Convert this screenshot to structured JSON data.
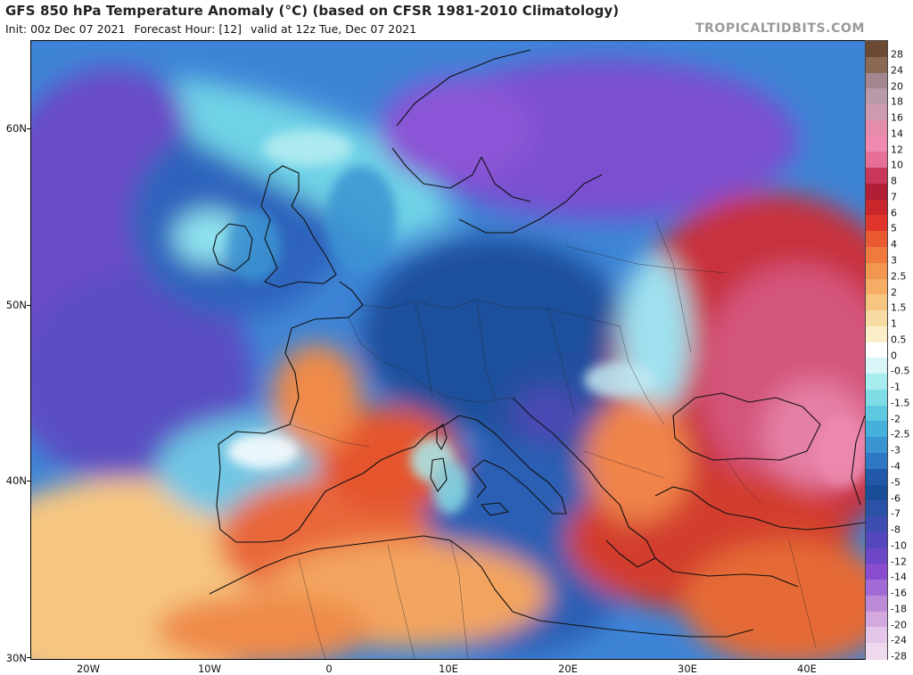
{
  "header": {
    "title": "GFS 850 hPa Temperature Anomaly (°C) (based on CFSR 1981-2010 Climatology)",
    "init": "Init: 00z Dec 07 2021",
    "forecast_hour": "Forecast Hour: [12]",
    "valid": "valid at 12z Tue, Dec 07 2021",
    "brand": "TROPICALTIDBITS.COM"
  },
  "axes": {
    "lat_labels": [
      "60N",
      "50N",
      "40N",
      "30N"
    ],
    "lon_labels": [
      "20W",
      "10W",
      "0",
      "10E",
      "20E",
      "30E",
      "40E"
    ]
  },
  "colorbar": {
    "labels": [
      "28",
      "24",
      "20",
      "18",
      "16",
      "14",
      "12",
      "10",
      "8",
      "7",
      "6",
      "5",
      "4",
      "3",
      "2.5",
      "2",
      "1.5",
      "1",
      "0.5",
      "0",
      "-0.5",
      "-1",
      "-1.5",
      "-2",
      "-2.5",
      "-3",
      "-4",
      "-5",
      "-6",
      "-7",
      "-8",
      "-10",
      "-12",
      "-14",
      "-16",
      "-18",
      "-20",
      "-24",
      "-28"
    ],
    "colors": [
      "#6b4a33",
      "#8a6a55",
      "#a3868e",
      "#b89aa8",
      "#cc9bb0",
      "#e58cac",
      "#ee8ab0",
      "#e66f97",
      "#c9375a",
      "#b11e36",
      "#c8282c",
      "#e0352b",
      "#e95a32",
      "#f07a3e",
      "#f3964f",
      "#f5ad65",
      "#f6c681",
      "#f8dba2",
      "#fbeec8",
      "#ffffff",
      "#d9f5f7",
      "#a7ecef",
      "#7fdde6",
      "#5ec8e0",
      "#46b0dc",
      "#3a94d2",
      "#2f77c2",
      "#2158a8",
      "#1a4d98",
      "#2a52a6",
      "#3e4db2",
      "#5447bd",
      "#6e46c8",
      "#8a4ccf",
      "#a26ad4",
      "#bd8ad8",
      "#d4a9e0",
      "#e4c6e8",
      "#efd9ee"
    ]
  }
}
